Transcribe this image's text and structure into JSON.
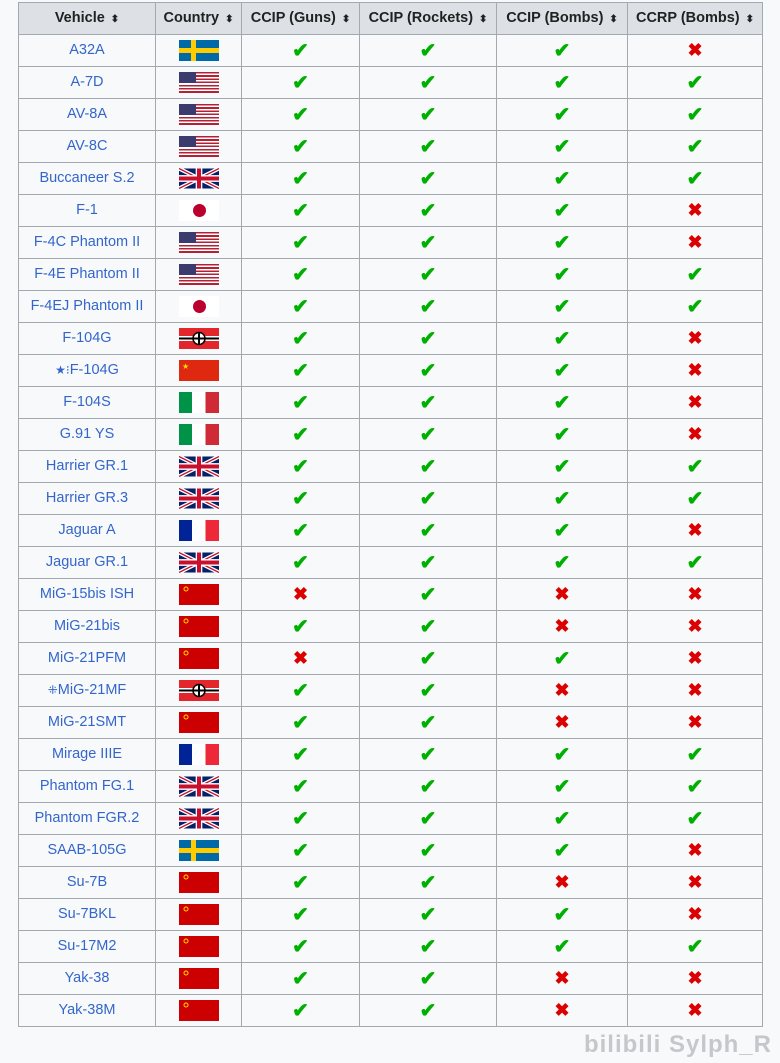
{
  "headers": [
    "Vehicle",
    "Country",
    "CCIP (Guns)",
    "CCIP (Rockets)",
    "CCIP (Bombs)",
    "CCRP (Bombs)"
  ],
  "sort_icon": "sort-arrows-icon",
  "colors": {
    "yes": "#00af00",
    "no": "#dd0000",
    "link": "#3366cc",
    "header_bg": "#dde1e5"
  },
  "rows": [
    {
      "vehicle": "A32A",
      "country": "sweden",
      "v": [
        1,
        1,
        1,
        0
      ]
    },
    {
      "vehicle": "A-7D",
      "country": "usa",
      "v": [
        1,
        1,
        1,
        1
      ]
    },
    {
      "vehicle": "AV-8A",
      "country": "usa",
      "v": [
        1,
        1,
        1,
        1
      ]
    },
    {
      "vehicle": "AV-8C",
      "country": "usa",
      "v": [
        1,
        1,
        1,
        1
      ]
    },
    {
      "vehicle": "Buccaneer S.2",
      "country": "uk",
      "v": [
        1,
        1,
        1,
        1
      ]
    },
    {
      "vehicle": "F-1",
      "country": "japan",
      "v": [
        1,
        1,
        1,
        0
      ]
    },
    {
      "vehicle": "F-4C Phantom II",
      "country": "usa",
      "v": [
        1,
        1,
        1,
        0
      ]
    },
    {
      "vehicle": "F-4E Phantom II",
      "country": "usa",
      "v": [
        1,
        1,
        1,
        1
      ]
    },
    {
      "vehicle": "F-4EJ Phantom II",
      "country": "japan",
      "v": [
        1,
        1,
        1,
        1
      ]
    },
    {
      "vehicle": "F-104G",
      "country": "germany",
      "v": [
        1,
        1,
        1,
        0
      ]
    },
    {
      "vehicle": "F-104G",
      "prefix": "★⁝",
      "country": "china",
      "v": [
        1,
        1,
        1,
        0
      ]
    },
    {
      "vehicle": "F-104S",
      "country": "italy",
      "v": [
        1,
        1,
        1,
        0
      ]
    },
    {
      "vehicle": "G.91 YS",
      "country": "italy",
      "v": [
        1,
        1,
        1,
        0
      ]
    },
    {
      "vehicle": "Harrier GR.1",
      "country": "uk",
      "v": [
        1,
        1,
        1,
        1
      ]
    },
    {
      "vehicle": "Harrier GR.3",
      "country": "uk",
      "v": [
        1,
        1,
        1,
        1
      ]
    },
    {
      "vehicle": "Jaguar A",
      "country": "france",
      "v": [
        1,
        1,
        1,
        0
      ]
    },
    {
      "vehicle": "Jaguar GR.1",
      "country": "uk",
      "v": [
        1,
        1,
        1,
        1
      ]
    },
    {
      "vehicle": "MiG-15bis ISH",
      "country": "ussr",
      "v": [
        0,
        1,
        0,
        0
      ]
    },
    {
      "vehicle": "MiG-21bis",
      "country": "ussr",
      "v": [
        1,
        1,
        0,
        0
      ]
    },
    {
      "vehicle": "MiG-21PFM",
      "country": "ussr",
      "v": [
        0,
        1,
        1,
        0
      ]
    },
    {
      "vehicle": "MiG-21MF",
      "prefix": "⁜",
      "country": "germany",
      "v": [
        1,
        1,
        0,
        0
      ]
    },
    {
      "vehicle": "MiG-21SMT",
      "country": "ussr",
      "v": [
        1,
        1,
        0,
        0
      ]
    },
    {
      "vehicle": "Mirage IIIE",
      "country": "france",
      "v": [
        1,
        1,
        1,
        1
      ]
    },
    {
      "vehicle": "Phantom FG.1",
      "country": "uk",
      "v": [
        1,
        1,
        1,
        1
      ]
    },
    {
      "vehicle": "Phantom FGR.2",
      "country": "uk",
      "v": [
        1,
        1,
        1,
        1
      ]
    },
    {
      "vehicle": "SAAB-105G",
      "country": "sweden",
      "v": [
        1,
        1,
        1,
        0
      ]
    },
    {
      "vehicle": "Su-7B",
      "country": "ussr",
      "v": [
        1,
        1,
        0,
        0
      ]
    },
    {
      "vehicle": "Su-7BKL",
      "country": "ussr",
      "v": [
        1,
        1,
        1,
        0
      ]
    },
    {
      "vehicle": "Su-17M2",
      "country": "ussr",
      "v": [
        1,
        1,
        1,
        1
      ]
    },
    {
      "vehicle": "Yak-38",
      "country": "ussr",
      "v": [
        1,
        1,
        0,
        0
      ]
    },
    {
      "vehicle": "Yak-38M",
      "country": "ussr",
      "v": [
        1,
        1,
        0,
        0
      ]
    }
  ],
  "watermark": "bilibili Sylph_R"
}
